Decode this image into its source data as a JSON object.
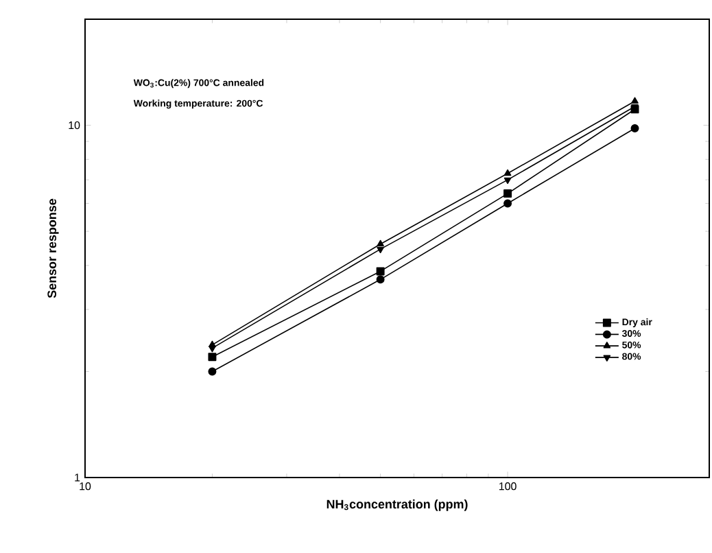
{
  "chart_data": {
    "type": "line",
    "xlabel": "NH$_{3}$concentration (ppm)",
    "ylabel": "Sensor response",
    "annotations": [
      "WO$_{3}$:Cu(2%) 700°C annealed",
      "Working temperature: 200°C"
    ],
    "x": [
      20,
      50,
      100,
      200
    ],
    "series": [
      {
        "name": "Dry air",
        "color": "#000000",
        "marker": "square",
        "values": [
          2.2,
          3.85,
          6.4,
          11.1
        ]
      },
      {
        "name": "30%",
        "color": "#000000",
        "marker": "circle",
        "values": [
          2.0,
          3.65,
          6.0,
          9.8
        ]
      },
      {
        "name": "50%",
        "color": "#000000",
        "marker": "triangle",
        "values": [
          2.38,
          4.6,
          7.3,
          11.7
        ]
      },
      {
        "name": "80%",
        "color": "#000000",
        "marker": "triangle down",
        "values": [
          2.33,
          4.45,
          7.0,
          11.3
        ]
      }
    ],
    "log": "xy",
    "xlim": [
      10,
      300
    ],
    "ylim": [
      1,
      20
    ],
    "xticks": [
      10,
      100
    ],
    "yticks": [
      1,
      10
    ],
    "legend": "right",
    "grid": false,
    "line_style": "solid"
  }
}
